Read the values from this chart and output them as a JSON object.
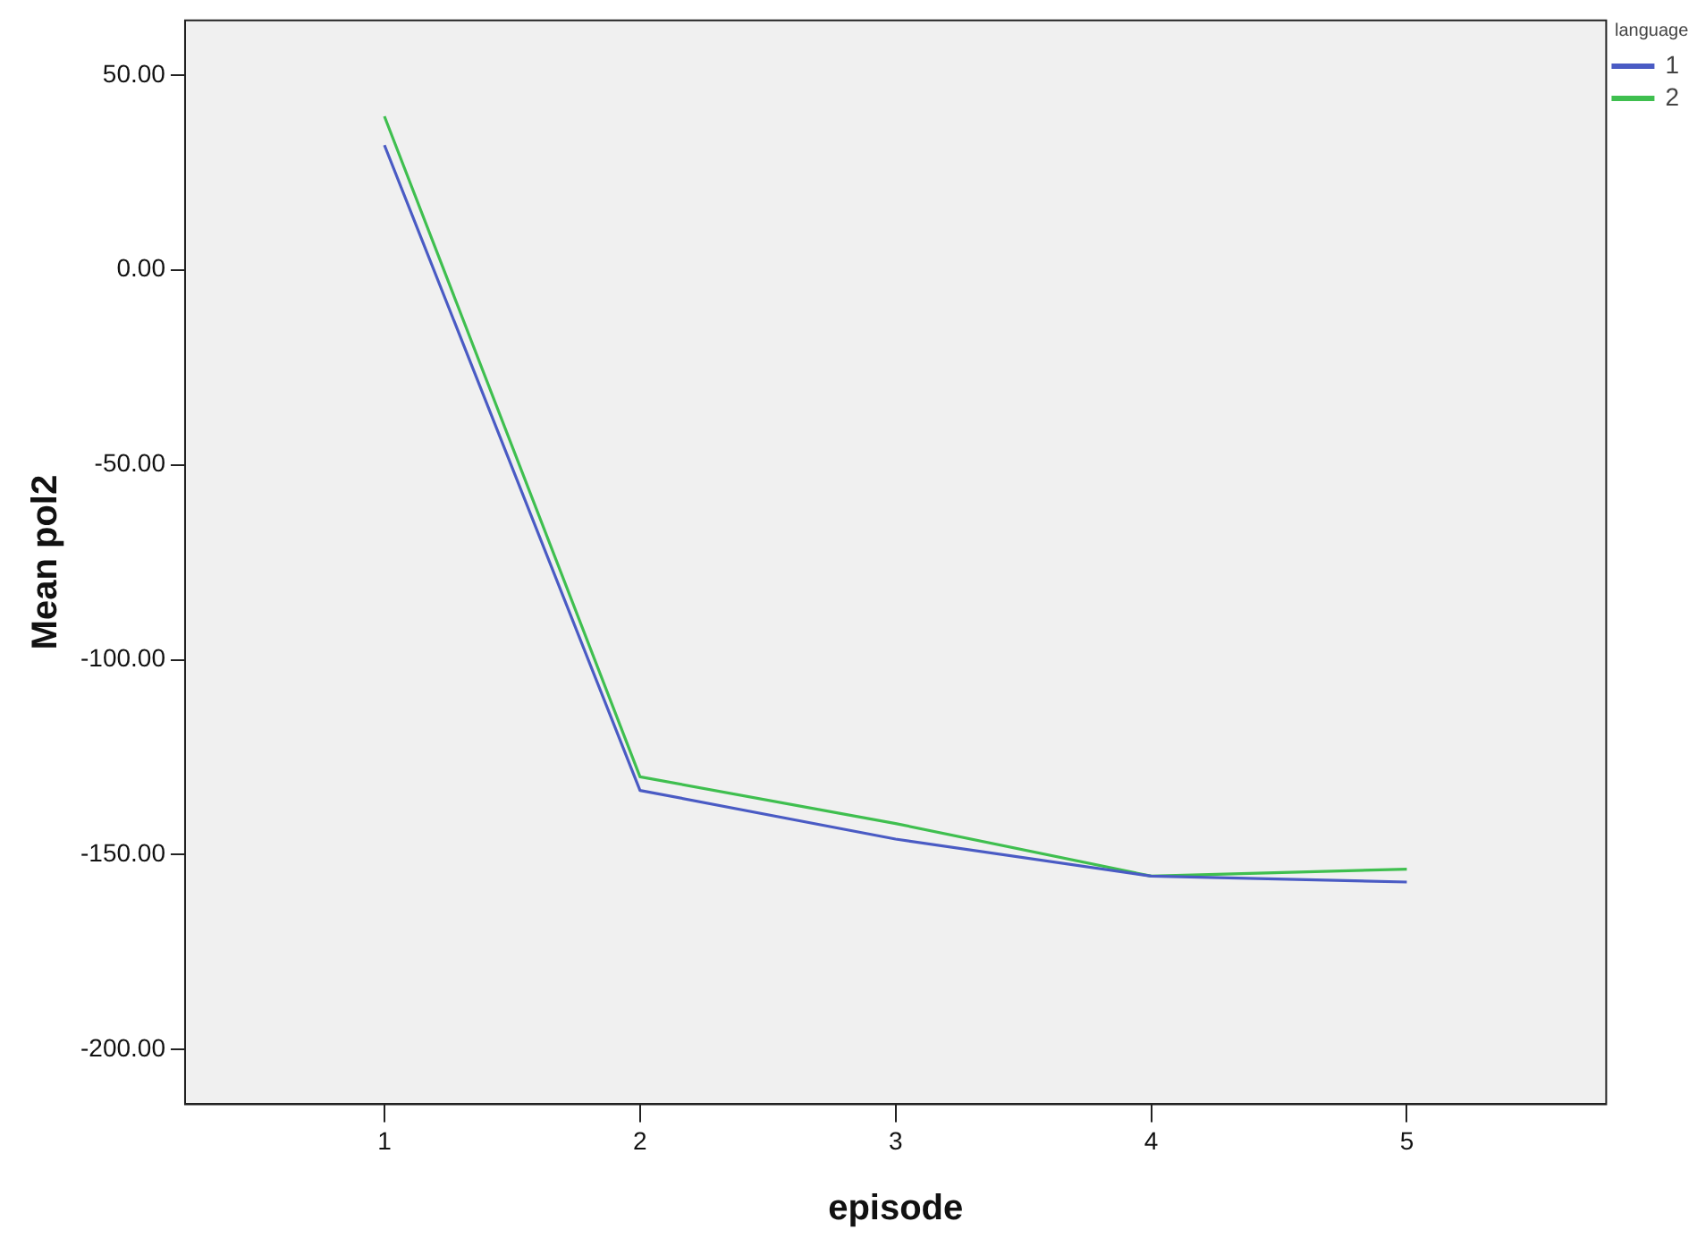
{
  "chart_data": {
    "type": "line",
    "xlabel": "episode",
    "ylabel": "Mean pol2",
    "legend_title": "language",
    "legend": "top right",
    "grid": false,
    "marker": "none",
    "line_style": "solid",
    "x": [
      1,
      2,
      3,
      4,
      5
    ],
    "xlim": [
      0.22,
      5.78
    ],
    "xticks": [
      1,
      2,
      3,
      4,
      5
    ],
    "ylim": [
      -214,
      64
    ],
    "yticks": [
      {
        "value": -200,
        "label": "-200.00"
      },
      {
        "value": -150,
        "label": "-150.00"
      },
      {
        "value": -100,
        "label": "-100.00"
      },
      {
        "value": -50,
        "label": "-50.00"
      },
      {
        "value": 0,
        "label": "0.00"
      },
      {
        "value": 50,
        "label": "50.00"
      }
    ],
    "series": [
      {
        "name": "1",
        "color": "#4a5bc4",
        "values": [
          32,
          -133.5,
          -146,
          -155.5,
          -157
        ]
      },
      {
        "name": "2",
        "color": "#3fbf4f",
        "values": [
          39.4,
          -130,
          -142,
          -155.5,
          -153.7
        ]
      }
    ]
  }
}
